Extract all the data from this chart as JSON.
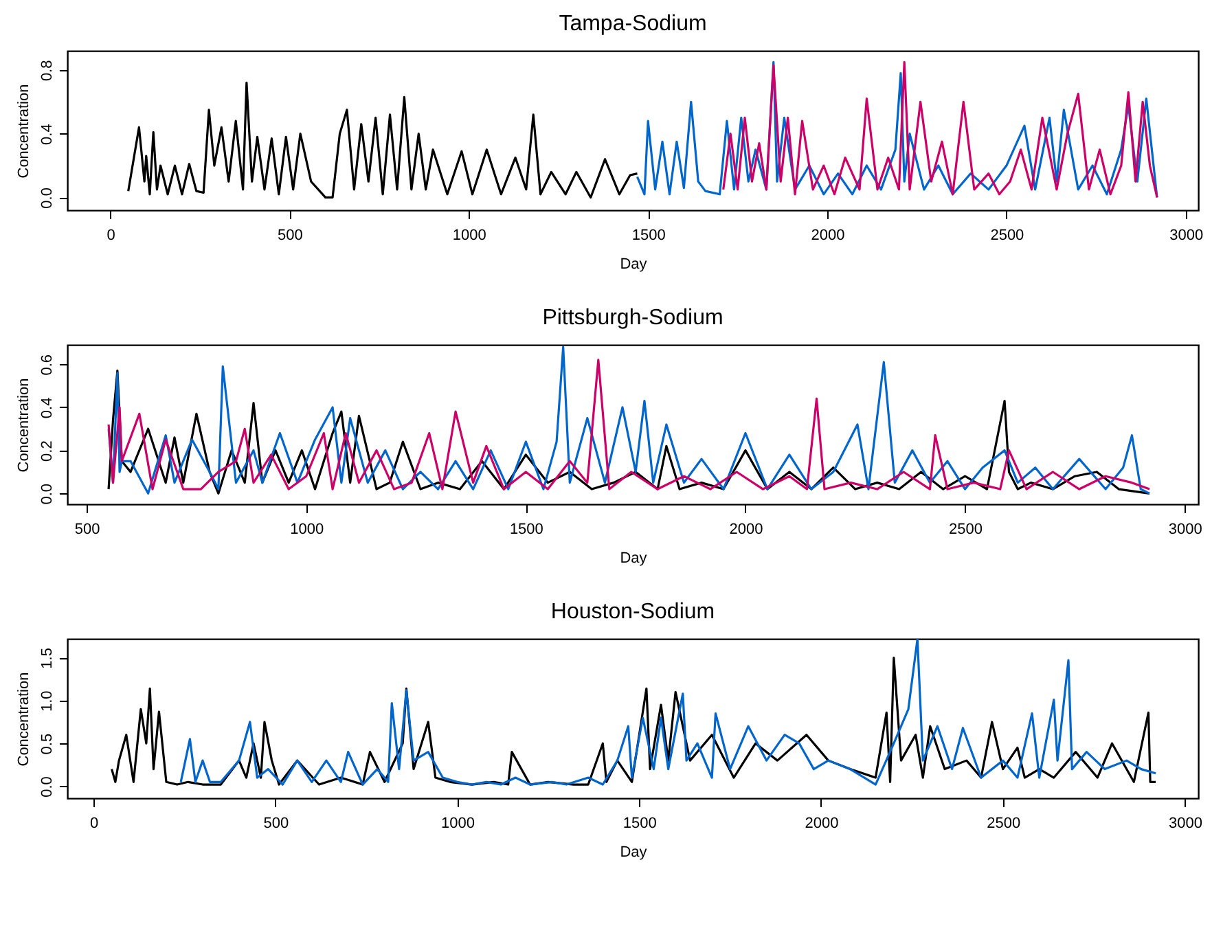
{
  "chart_data": [
    {
      "type": "line",
      "title": "Tampa-Sodium",
      "xlabel": "Day",
      "ylabel": "Concentration",
      "xlim": [
        -120,
        3035
      ],
      "ylim": [
        -0.08,
        0.92
      ],
      "xticks": [
        0,
        500,
        1000,
        1500,
        2000,
        2500,
        3000
      ],
      "yticks": [
        {
          "value": 0,
          "label": "0.0"
        },
        {
          "value": 0.4,
          "label": "0.4"
        },
        {
          "value": 0.8,
          "label": "0.8"
        }
      ],
      "grid": false,
      "series": [
        {
          "color": "#000000",
          "x": [
            50,
            80,
            95,
            100,
            110,
            120,
            130,
            140,
            160,
            180,
            200,
            220,
            240,
            260,
            275,
            290,
            310,
            330,
            350,
            370,
            380,
            395,
            410,
            430,
            450,
            470,
            490,
            510,
            530,
            560,
            600,
            620,
            640,
            660,
            680,
            700,
            720,
            740,
            760,
            780,
            800,
            820,
            840,
            860,
            880,
            900,
            940,
            980,
            1010,
            1050,
            1090,
            1130,
            1160,
            1180,
            1200,
            1230,
            1270,
            1300,
            1340,
            1380,
            1420,
            1450,
            1470
          ],
          "values": [
            0.04,
            0.44,
            0.1,
            0.26,
            0.02,
            0.41,
            0.05,
            0.2,
            0.02,
            0.2,
            0.02,
            0.21,
            0.04,
            0.03,
            0.55,
            0.2,
            0.44,
            0.1,
            0.48,
            0.05,
            0.72,
            0.1,
            0.38,
            0.05,
            0.37,
            0.02,
            0.38,
            0.05,
            0.4,
            0.1,
            0.0,
            0.0,
            0.4,
            0.55,
            0.05,
            0.46,
            0.1,
            0.5,
            0.02,
            0.52,
            0.05,
            0.63,
            0.05,
            0.4,
            0.05,
            0.3,
            0.02,
            0.29,
            0.02,
            0.3,
            0.02,
            0.25,
            0.05,
            0.52,
            0.02,
            0.16,
            0.02,
            0.16,
            0.0,
            0.24,
            0.02,
            0.14,
            0.15
          ]
        },
        {
          "color": "#0066cc",
          "x": [
            1470,
            1490,
            1500,
            1520,
            1540,
            1560,
            1580,
            1600,
            1620,
            1640,
            1660,
            1700,
            1720,
            1740,
            1760,
            1780,
            1800,
            1830,
            1850,
            1860,
            1880,
            1910,
            1950,
            1990,
            2030,
            2070,
            2110,
            2150,
            2190,
            2205,
            2215,
            2230,
            2270,
            2310,
            2350,
            2400,
            2450,
            2500,
            2550,
            2580,
            2620,
            2640,
            2660,
            2700,
            2740,
            2780,
            2820,
            2840,
            2865,
            2890,
            2920
          ],
          "values": [
            0.13,
            0.02,
            0.48,
            0.05,
            0.35,
            0.02,
            0.35,
            0.06,
            0.6,
            0.1,
            0.04,
            0.02,
            0.48,
            0.05,
            0.5,
            0.1,
            0.3,
            0.05,
            0.85,
            0.1,
            0.5,
            0.05,
            0.2,
            0.02,
            0.15,
            0.02,
            0.2,
            0.05,
            0.3,
            0.78,
            0.1,
            0.4,
            0.05,
            0.2,
            0.02,
            0.15,
            0.05,
            0.2,
            0.45,
            0.05,
            0.5,
            0.1,
            0.55,
            0.05,
            0.2,
            0.02,
            0.3,
            0.58,
            0.1,
            0.62,
            0.0
          ]
        },
        {
          "color": "#cc0066",
          "x": [
            1710,
            1730,
            1750,
            1770,
            1790,
            1810,
            1830,
            1850,
            1870,
            1890,
            1910,
            1930,
            1960,
            1990,
            2020,
            2050,
            2090,
            2110,
            2140,
            2170,
            2200,
            2215,
            2230,
            2260,
            2290,
            2320,
            2350,
            2380,
            2410,
            2450,
            2480,
            2510,
            2540,
            2570,
            2600,
            2640,
            2670,
            2700,
            2730,
            2760,
            2790,
            2820,
            2840,
            2860,
            2880,
            2900,
            2920
          ],
          "values": [
            0.05,
            0.4,
            0.05,
            0.5,
            0.1,
            0.34,
            0.05,
            0.83,
            0.1,
            0.5,
            0.02,
            0.48,
            0.05,
            0.2,
            0.02,
            0.25,
            0.05,
            0.62,
            0.05,
            0.25,
            0.05,
            0.85,
            0.05,
            0.6,
            0.1,
            0.35,
            0.02,
            0.6,
            0.05,
            0.15,
            0.02,
            0.1,
            0.3,
            0.05,
            0.5,
            0.05,
            0.4,
            0.65,
            0.05,
            0.3,
            0.02,
            0.2,
            0.66,
            0.1,
            0.6,
            0.2,
            0.0
          ]
        }
      ]
    },
    {
      "type": "line",
      "title": "Pittsburgh-Sodium",
      "xlabel": "Day",
      "ylabel": "Concentration",
      "xlim": [
        456,
        3031
      ],
      "ylim": [
        -0.05,
        0.69
      ],
      "xticks": [
        500,
        1000,
        1500,
        2000,
        2500,
        3000
      ],
      "yticks": [
        {
          "value": 0,
          "label": "0.0"
        },
        {
          "value": 0.2,
          "label": "0.2"
        },
        {
          "value": 0.4,
          "label": "0.4"
        },
        {
          "value": 0.6,
          "label": "0.6"
        }
      ],
      "grid": false,
      "series": [
        {
          "color": "#000000",
          "x": [
            550,
            560,
            570,
            580,
            600,
            640,
            680,
            700,
            720,
            750,
            780,
            800,
            830,
            860,
            880,
            900,
            930,
            960,
            990,
            1020,
            1060,
            1080,
            1100,
            1120,
            1160,
            1190,
            1220,
            1260,
            1300,
            1350,
            1400,
            1450,
            1500,
            1550,
            1600,
            1650,
            1700,
            1750,
            1800,
            1820,
            1850,
            1900,
            1950,
            2000,
            2050,
            2100,
            2150,
            2200,
            2250,
            2300,
            2350,
            2400,
            2450,
            2500,
            2550,
            2590,
            2600,
            2620,
            2650,
            2700,
            2750,
            2800,
            2850,
            2920
          ],
          "values": [
            0.02,
            0.34,
            0.57,
            0.15,
            0.1,
            0.3,
            0.05,
            0.26,
            0.05,
            0.37,
            0.1,
            0.0,
            0.2,
            0.05,
            0.42,
            0.05,
            0.2,
            0.05,
            0.2,
            0.02,
            0.28,
            0.38,
            0.05,
            0.36,
            0.02,
            0.05,
            0.24,
            0.02,
            0.05,
            0.02,
            0.15,
            0.02,
            0.18,
            0.05,
            0.1,
            0.02,
            0.05,
            0.1,
            0.02,
            0.22,
            0.02,
            0.05,
            0.02,
            0.2,
            0.02,
            0.1,
            0.02,
            0.12,
            0.02,
            0.05,
            0.02,
            0.1,
            0.02,
            0.08,
            0.02,
            0.43,
            0.1,
            0.02,
            0.05,
            0.02,
            0.08,
            0.1,
            0.02,
            0.0
          ]
        },
        {
          "color": "#0066cc",
          "x": [
            550,
            560,
            570,
            575,
            580,
            600,
            640,
            680,
            700,
            740,
            780,
            800,
            810,
            840,
            880,
            900,
            940,
            980,
            1020,
            1060,
            1080,
            1100,
            1140,
            1180,
            1220,
            1260,
            1300,
            1340,
            1380,
            1420,
            1460,
            1500,
            1540,
            1570,
            1585,
            1600,
            1640,
            1680,
            1720,
            1750,
            1770,
            1790,
            1820,
            1860,
            1900,
            1950,
            2000,
            2050,
            2100,
            2150,
            2200,
            2255,
            2280,
            2315,
            2340,
            2380,
            2420,
            2460,
            2500,
            2540,
            2590,
            2620,
            2660,
            2700,
            2760,
            2820,
            2860,
            2880,
            2900,
            2920
          ],
          "values": [
            0.3,
            0.05,
            0.56,
            0.1,
            0.15,
            0.15,
            0.0,
            0.27,
            0.05,
            0.25,
            0.1,
            0.02,
            0.59,
            0.05,
            0.2,
            0.05,
            0.28,
            0.05,
            0.25,
            0.4,
            0.05,
            0.35,
            0.05,
            0.2,
            0.02,
            0.1,
            0.02,
            0.15,
            0.02,
            0.2,
            0.02,
            0.24,
            0.02,
            0.24,
            0.68,
            0.05,
            0.35,
            0.05,
            0.4,
            0.1,
            0.43,
            0.05,
            0.32,
            0.05,
            0.16,
            0.02,
            0.28,
            0.02,
            0.18,
            0.02,
            0.1,
            0.32,
            0.02,
            0.61,
            0.05,
            0.2,
            0.05,
            0.15,
            0.02,
            0.12,
            0.2,
            0.05,
            0.12,
            0.02,
            0.16,
            0.02,
            0.12,
            0.27,
            0.02,
            0.0
          ]
        },
        {
          "color": "#cc0066",
          "x": [
            550,
            560,
            575,
            580,
            620,
            650,
            680,
            720,
            760,
            800,
            840,
            860,
            880,
            920,
            960,
            1000,
            1040,
            1060,
            1090,
            1120,
            1160,
            1200,
            1240,
            1280,
            1310,
            1340,
            1380,
            1410,
            1450,
            1500,
            1550,
            1600,
            1640,
            1665,
            1690,
            1740,
            1800,
            1860,
            1920,
            1980,
            2040,
            2100,
            2140,
            2162,
            2180,
            2240,
            2300,
            2360,
            2420,
            2432,
            2460,
            2520,
            2580,
            2600,
            2640,
            2700,
            2760,
            2820,
            2880,
            2920
          ],
          "values": [
            0.32,
            0.05,
            0.4,
            0.15,
            0.37,
            0.02,
            0.25,
            0.02,
            0.02,
            0.1,
            0.15,
            0.3,
            0.05,
            0.18,
            0.02,
            0.08,
            0.28,
            0.02,
            0.28,
            0.05,
            0.2,
            0.02,
            0.05,
            0.28,
            0.02,
            0.38,
            0.05,
            0.22,
            0.02,
            0.1,
            0.02,
            0.15,
            0.05,
            0.62,
            0.02,
            0.1,
            0.02,
            0.08,
            0.02,
            0.1,
            0.02,
            0.08,
            0.02,
            0.44,
            0.02,
            0.05,
            0.02,
            0.1,
            0.02,
            0.27,
            0.02,
            0.05,
            0.02,
            0.2,
            0.02,
            0.1,
            0.02,
            0.08,
            0.05,
            0.02
          ]
        }
      ]
    },
    {
      "type": "line",
      "title": "Houston-Sodium",
      "xlabel": "Day",
      "ylabel": "Concentration",
      "xlim": [
        -72,
        3037
      ],
      "ylim": [
        -0.14,
        1.72
      ],
      "xticks": [
        0,
        500,
        1000,
        1500,
        2000,
        2500,
        3000
      ],
      "yticks": [
        {
          "value": 0,
          "label": "0.0"
        },
        {
          "value": 0.5,
          "label": "0.5"
        },
        {
          "value": 1,
          "label": "1.0"
        },
        {
          "value": 1.5,
          "label": "1.5"
        }
      ],
      "grid": false,
      "series": [
        {
          "color": "#000000",
          "x": [
            50,
            60,
            70,
            90,
            110,
            130,
            145,
            155,
            165,
            180,
            200,
            230,
            260,
            300,
            350,
            400,
            420,
            440,
            460,
            470,
            490,
            510,
            560,
            620,
            680,
            740,
            760,
            800,
            850,
            860,
            880,
            920,
            940,
            980,
            1040,
            1100,
            1140,
            1150,
            1200,
            1250,
            1320,
            1360,
            1400,
            1410,
            1440,
            1480,
            1520,
            1530,
            1560,
            1580,
            1600,
            1640,
            1700,
            1760,
            1820,
            1880,
            1960,
            2020,
            2080,
            2150,
            2180,
            2190,
            2200,
            2220,
            2260,
            2280,
            2300,
            2340,
            2400,
            2440,
            2470,
            2500,
            2540,
            2560,
            2600,
            2640,
            2700,
            2760,
            2800,
            2860,
            2900,
            2905,
            2920
          ],
          "values": [
            0.2,
            0.05,
            0.3,
            0.6,
            0.05,
            0.9,
            0.5,
            1.14,
            0.2,
            0.87,
            0.05,
            0.02,
            0.05,
            0.02,
            0.02,
            0.3,
            0.1,
            0.5,
            0.1,
            0.75,
            0.3,
            0.02,
            0.3,
            0.02,
            0.1,
            0.02,
            0.4,
            0.05,
            0.5,
            1.14,
            0.2,
            0.75,
            0.1,
            0.05,
            0.02,
            0.05,
            0.02,
            0.4,
            0.02,
            0.05,
            0.02,
            0.02,
            0.5,
            0.05,
            0.3,
            0.05,
            1.14,
            0.2,
            0.95,
            0.3,
            1.1,
            0.3,
            0.6,
            0.1,
            0.5,
            0.3,
            0.6,
            0.3,
            0.2,
            0.1,
            0.86,
            0.05,
            1.5,
            0.3,
            0.6,
            0.1,
            0.7,
            0.2,
            0.3,
            0.1,
            0.75,
            0.2,
            0.45,
            0.1,
            0.2,
            0.1,
            0.4,
            0.1,
            0.5,
            0.05,
            0.86,
            0.05,
            0.05
          ]
        },
        {
          "color": "#0066cc",
          "x": [
            240,
            265,
            280,
            300,
            320,
            350,
            400,
            430,
            450,
            480,
            520,
            560,
            600,
            640,
            680,
            700,
            740,
            780,
            810,
            820,
            840,
            860,
            880,
            920,
            960,
            1000,
            1040,
            1080,
            1120,
            1160,
            1200,
            1260,
            1300,
            1360,
            1400,
            1440,
            1470,
            1480,
            1510,
            1540,
            1560,
            1580,
            1620,
            1630,
            1660,
            1700,
            1710,
            1750,
            1800,
            1850,
            1900,
            1940,
            1980,
            2020,
            2080,
            2150,
            2200,
            2240,
            2265,
            2280,
            2320,
            2360,
            2390,
            2440,
            2500,
            2540,
            2580,
            2600,
            2640,
            2650,
            2680,
            2690,
            2730,
            2780,
            2840,
            2880,
            2920
          ],
          "values": [
            0.05,
            0.55,
            0.05,
            0.3,
            0.05,
            0.05,
            0.3,
            0.75,
            0.1,
            0.2,
            0.02,
            0.3,
            0.05,
            0.3,
            0.05,
            0.4,
            0.02,
            0.2,
            0.05,
            0.97,
            0.2,
            1.12,
            0.3,
            0.4,
            0.1,
            0.05,
            0.02,
            0.05,
            0.02,
            0.1,
            0.02,
            0.05,
            0.02,
            0.1,
            0.02,
            0.3,
            0.7,
            0.1,
            0.8,
            0.2,
            0.8,
            0.2,
            1.08,
            0.3,
            0.5,
            0.1,
            0.85,
            0.2,
            0.7,
            0.3,
            0.6,
            0.5,
            0.2,
            0.3,
            0.2,
            0.02,
            0.5,
            0.9,
            1.72,
            0.3,
            0.7,
            0.2,
            0.68,
            0.1,
            0.3,
            0.1,
            0.85,
            0.1,
            1.01,
            0.3,
            1.47,
            0.2,
            0.4,
            0.2,
            0.3,
            0.2,
            0.15
          ]
        }
      ]
    }
  ]
}
